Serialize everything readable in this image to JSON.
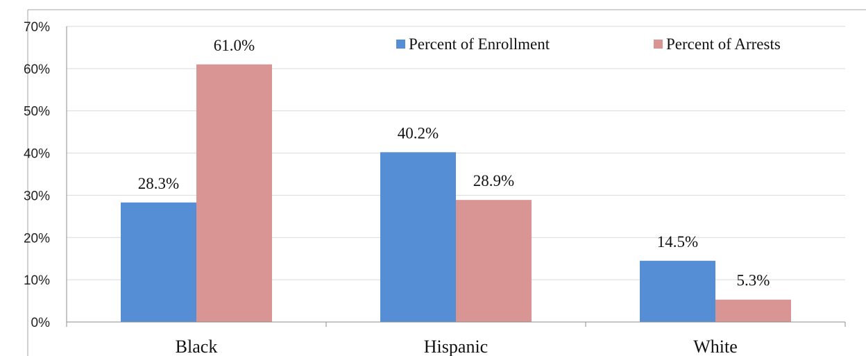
{
  "chart_data": {
    "type": "bar",
    "title": "",
    "xlabel": "",
    "ylabel": "",
    "categories": [
      "Black",
      "Hispanic",
      "White"
    ],
    "series": [
      {
        "name": "Percent of Enrollment",
        "values": [
          28.3,
          40.2,
          14.5
        ],
        "labels": [
          "28.3%",
          "40.2%",
          "14.5%"
        ],
        "color": "#558ed5"
      },
      {
        "name": "Percent of Arrests",
        "values": [
          61.0,
          28.9,
          5.3
        ],
        "labels": [
          "61.0%",
          "28.9%",
          "5.3%"
        ],
        "color": "#d99594"
      }
    ],
    "ylim": [
      0,
      70
    ],
    "yticks": [
      0,
      10,
      20,
      30,
      40,
      50,
      60,
      70
    ],
    "ytick_labels": [
      "0%",
      "10%",
      "20%",
      "30%",
      "40%",
      "50%",
      "60%",
      "70%"
    ],
    "grid": true,
    "legend": "top-right"
  },
  "style": {
    "gridline_color": "#d9d9d9",
    "axis_color": "#8c8c8c",
    "frame_color": "#a6a6a6"
  }
}
